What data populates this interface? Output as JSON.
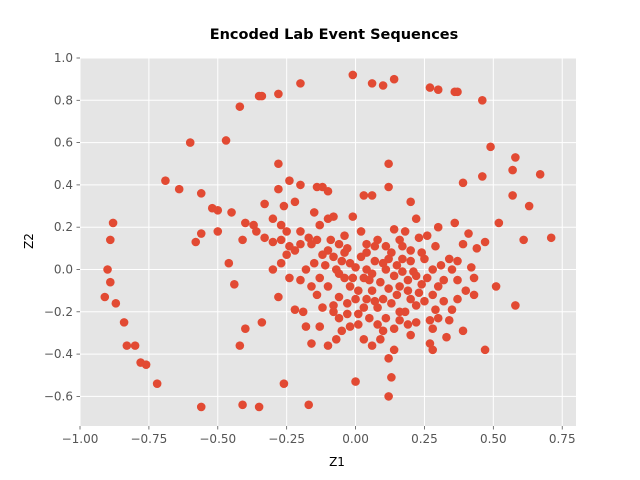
{
  "chart_data": {
    "type": "scatter",
    "title": "Encoded Lab Event Sequences",
    "xlabel": "Z1",
    "ylabel": "Z2",
    "xlim": [
      -1.0,
      0.8
    ],
    "ylim": [
      -0.74,
      1.0
    ],
    "xticks": [
      -1.0,
      -0.75,
      -0.5,
      -0.25,
      0.0,
      0.25,
      0.5,
      0.75
    ],
    "xtick_labels": [
      "−1.00",
      "−0.75",
      "−0.50",
      "−0.25",
      "0.00",
      "0.25",
      "0.50",
      "0.75"
    ],
    "yticks": [
      -0.6,
      -0.4,
      -0.2,
      0.0,
      0.2,
      0.4,
      0.6,
      0.8,
      1.0
    ],
    "ytick_labels": [
      "−0.6",
      "−0.4",
      "−0.2",
      "0.0",
      "0.2",
      "0.4",
      "0.6",
      "0.8",
      "1.0"
    ],
    "grid": true,
    "colors": {
      "point": "#E24A33",
      "background": "#E5E5E5",
      "grid": "#FFFFFF"
    },
    "points": [
      [
        -0.01,
        0.92
      ],
      [
        0.06,
        0.88
      ],
      [
        0.1,
        0.87
      ],
      [
        0.14,
        0.9
      ],
      [
        -0.2,
        0.88
      ],
      [
        -0.28,
        0.83
      ],
      [
        -0.34,
        0.82
      ],
      [
        -0.35,
        0.82
      ],
      [
        -0.42,
        0.77
      ],
      [
        0.27,
        0.86
      ],
      [
        0.3,
        0.85
      ],
      [
        0.37,
        0.84
      ],
      [
        0.36,
        0.84
      ],
      [
        0.46,
        0.8
      ],
      [
        -0.6,
        0.6
      ],
      [
        -0.47,
        0.61
      ],
      [
        0.49,
        0.58
      ],
      [
        0.58,
        0.53
      ],
      [
        0.57,
        0.47
      ],
      [
        0.46,
        0.44
      ],
      [
        0.67,
        0.45
      ],
      [
        -0.69,
        0.42
      ],
      [
        -0.64,
        0.38
      ],
      [
        -0.56,
        0.36
      ],
      [
        0.39,
        0.41
      ],
      [
        0.57,
        0.35
      ],
      [
        0.63,
        0.3
      ],
      [
        0.52,
        0.22
      ],
      [
        0.61,
        0.14
      ],
      [
        0.71,
        0.15
      ],
      [
        -0.88,
        0.22
      ],
      [
        -0.89,
        0.14
      ],
      [
        -0.9,
        0.0
      ],
      [
        -0.89,
        -0.06
      ],
      [
        -0.91,
        -0.13
      ],
      [
        -0.87,
        -0.16
      ],
      [
        -0.84,
        -0.25
      ],
      [
        -0.83,
        -0.36
      ],
      [
        -0.8,
        -0.36
      ],
      [
        -0.78,
        -0.44
      ],
      [
        -0.76,
        -0.45
      ],
      [
        -0.72,
        -0.54
      ],
      [
        -0.56,
        -0.65
      ],
      [
        -0.41,
        -0.64
      ],
      [
        -0.35,
        -0.65
      ],
      [
        -0.17,
        -0.64
      ],
      [
        -0.26,
        -0.54
      ],
      [
        0.0,
        -0.53
      ],
      [
        0.13,
        -0.51
      ],
      [
        0.12,
        -0.6
      ],
      [
        0.51,
        -0.08
      ],
      [
        0.58,
        -0.17
      ],
      [
        0.47,
        -0.38
      ],
      [
        0.39,
        -0.29
      ],
      [
        0.12,
        0.5
      ],
      [
        0.03,
        0.35
      ],
      [
        -0.28,
        0.5
      ],
      [
        -0.24,
        0.42
      ],
      [
        -0.2,
        0.4
      ],
      [
        -0.14,
        0.39
      ],
      [
        -0.12,
        0.39
      ],
      [
        -0.1,
        0.37
      ],
      [
        -0.28,
        0.38
      ],
      [
        -0.26,
        0.3
      ],
      [
        -0.33,
        0.31
      ],
      [
        -0.3,
        0.24
      ],
      [
        -0.27,
        0.21
      ],
      [
        -0.22,
        0.32
      ],
      [
        -0.15,
        0.27
      ],
      [
        -0.13,
        0.21
      ],
      [
        -0.1,
        0.24
      ],
      [
        -0.08,
        0.25
      ],
      [
        0.06,
        0.35
      ],
      [
        0.12,
        0.39
      ],
      [
        0.2,
        0.32
      ],
      [
        0.22,
        0.24
      ],
      [
        0.3,
        0.2
      ],
      [
        0.36,
        0.22
      ],
      [
        0.41,
        0.17
      ],
      [
        0.47,
        0.13
      ],
      [
        0.39,
        0.12
      ],
      [
        0.44,
        0.1
      ],
      [
        -0.5,
        0.28
      ],
      [
        -0.52,
        0.29
      ],
      [
        -0.5,
        0.18
      ],
      [
        -0.45,
        0.27
      ],
      [
        -0.58,
        0.13
      ],
      [
        -0.56,
        0.17
      ],
      [
        -0.4,
        0.22
      ],
      [
        -0.41,
        0.14
      ],
      [
        -0.37,
        0.21
      ],
      [
        -0.36,
        0.18
      ],
      [
        -0.33,
        0.15
      ],
      [
        -0.46,
        0.03
      ],
      [
        -0.44,
        -0.07
      ],
      [
        -0.4,
        -0.28
      ],
      [
        -0.42,
        -0.36
      ],
      [
        -0.34,
        -0.25
      ],
      [
        -0.3,
        0.0
      ],
      [
        -0.27,
        0.03
      ],
      [
        -0.28,
        -0.13
      ],
      [
        -0.22,
        -0.19
      ],
      [
        -0.19,
        -0.2
      ],
      [
        -0.18,
        -0.27
      ],
      [
        -0.16,
        -0.35
      ],
      [
        -0.13,
        -0.27
      ],
      [
        -0.1,
        -0.36
      ],
      [
        -0.07,
        -0.33
      ],
      [
        -0.05,
        -0.29
      ],
      [
        -0.02,
        -0.27
      ],
      [
        -0.03,
        -0.21
      ],
      [
        0.01,
        -0.26
      ],
      [
        0.03,
        -0.33
      ],
      [
        0.06,
        -0.36
      ],
      [
        0.09,
        -0.33
      ],
      [
        0.12,
        -0.42
      ],
      [
        0.14,
        -0.38
      ],
      [
        0.2,
        -0.31
      ],
      [
        0.27,
        -0.35
      ],
      [
        0.22,
        -0.25
      ],
      [
        0.27,
        -0.24
      ],
      [
        0.3,
        -0.23
      ],
      [
        0.34,
        -0.24
      ],
      [
        0.28,
        -0.38
      ],
      [
        0.16,
        -0.2
      ],
      [
        0.19,
        -0.26
      ],
      [
        0.37,
        -0.14
      ],
      [
        0.35,
        -0.19
      ],
      [
        0.43,
        -0.12
      ],
      [
        0.4,
        -0.1
      ],
      [
        0.43,
        -0.04
      ],
      [
        0.42,
        0.01
      ],
      [
        0.35,
        0.0
      ],
      [
        0.37,
        0.04
      ],
      [
        0.31,
        0.02
      ],
      [
        0.28,
        0.0
      ],
      [
        0.25,
        0.05
      ],
      [
        0.24,
        0.08
      ],
      [
        0.29,
        0.11
      ],
      [
        0.16,
        0.14
      ],
      [
        0.11,
        0.11
      ],
      [
        0.13,
        0.08
      ],
      [
        0.17,
        0.05
      ],
      [
        0.12,
        0.05
      ],
      [
        0.11,
        0.0
      ],
      [
        0.2,
        0.04
      ],
      [
        0.21,
        -0.01
      ],
      [
        0.19,
        -0.05
      ],
      [
        0.24,
        -0.07
      ],
      [
        0.23,
        -0.11
      ],
      [
        0.2,
        -0.14
      ],
      [
        0.15,
        -0.12
      ],
      [
        0.1,
        -0.14
      ],
      [
        0.06,
        -0.1
      ],
      [
        0.06,
        -0.02
      ],
      [
        0.03,
        -0.04
      ],
      [
        0.01,
        -0.1
      ],
      [
        0.04,
        -0.14
      ],
      [
        0.03,
        -0.18
      ],
      [
        0.0,
        -0.14
      ],
      [
        -0.02,
        -0.08
      ],
      [
        -0.04,
        -0.04
      ],
      [
        -0.07,
        0.0
      ],
      [
        -0.05,
        0.04
      ],
      [
        -0.02,
        0.03
      ],
      [
        0.02,
        0.06
      ],
      [
        0.04,
        0.08
      ],
      [
        0.07,
        0.11
      ],
      [
        0.04,
        0.12
      ],
      [
        0.02,
        0.18
      ],
      [
        -0.01,
        0.25
      ],
      [
        -0.04,
        0.16
      ],
      [
        -0.06,
        0.12
      ],
      [
        -0.1,
        0.09
      ],
      [
        -0.14,
        0.14
      ],
      [
        -0.17,
        0.15
      ],
      [
        -0.2,
        0.12
      ],
      [
        -0.22,
        0.09
      ],
      [
        -0.25,
        0.07
      ],
      [
        -0.24,
        0.11
      ],
      [
        -0.27,
        0.14
      ],
      [
        -0.3,
        0.13
      ],
      [
        -0.25,
        0.18
      ],
      [
        -0.2,
        0.18
      ],
      [
        -0.16,
        0.12
      ],
      [
        -0.12,
        0.07
      ],
      [
        -0.15,
        0.03
      ],
      [
        -0.18,
        0.0
      ],
      [
        -0.2,
        -0.05
      ],
      [
        -0.24,
        -0.04
      ],
      [
        -0.16,
        -0.08
      ],
      [
        -0.13,
        -0.04
      ],
      [
        -0.1,
        -0.08
      ],
      [
        -0.14,
        -0.12
      ],
      [
        -0.12,
        -0.18
      ],
      [
        -0.08,
        -0.17
      ],
      [
        -0.06,
        -0.13
      ],
      [
        -0.08,
        -0.2
      ],
      [
        -0.06,
        -0.23
      ],
      [
        -0.03,
        -0.16
      ],
      [
        0.08,
        -0.18
      ],
      [
        0.11,
        -0.23
      ],
      [
        0.08,
        -0.26
      ],
      [
        0.05,
        -0.23
      ],
      [
        0.14,
        -0.28
      ],
      [
        0.18,
        -0.2
      ],
      [
        0.22,
        -0.17
      ],
      [
        0.25,
        -0.15
      ],
      [
        0.28,
        -0.12
      ],
      [
        0.3,
        -0.08
      ],
      [
        0.26,
        -0.04
      ],
      [
        0.29,
        -0.19
      ],
      [
        0.32,
        -0.15
      ],
      [
        0.28,
        -0.28
      ],
      [
        0.33,
        -0.32
      ],
      [
        0.13,
        -0.16
      ],
      [
        0.16,
        -0.08
      ],
      [
        0.09,
        -0.06
      ],
      [
        0.14,
        -0.03
      ],
      [
        0.1,
        0.03
      ],
      [
        0.15,
        0.02
      ],
      [
        0.17,
        -0.01
      ],
      [
        0.07,
        0.04
      ],
      [
        0.0,
        0.01
      ],
      [
        -0.01,
        -0.04
      ],
      [
        0.04,
        0.0
      ],
      [
        -0.04,
        0.08
      ],
      [
        -0.08,
        0.06
      ],
      [
        -0.11,
        0.02
      ],
      [
        0.2,
        0.09
      ],
      [
        0.23,
        0.15
      ],
      [
        0.34,
        0.05
      ],
      [
        0.37,
        -0.05
      ],
      [
        0.32,
        -0.05
      ],
      [
        0.19,
        -0.1
      ],
      [
        0.12,
        -0.09
      ],
      [
        0.07,
        -0.15
      ],
      [
        0.01,
        -0.21
      ],
      [
        0.05,
        -0.05
      ],
      [
        0.22,
        -0.03
      ],
      [
        0.18,
        0.18
      ],
      [
        0.26,
        0.16
      ],
      [
        0.14,
        0.19
      ],
      [
        0.08,
        0.14
      ],
      [
        -0.03,
        0.1
      ],
      [
        -0.09,
        0.14
      ],
      [
        -0.06,
        -0.02
      ],
      [
        0.17,
        0.11
      ],
      [
        0.1,
        -0.29
      ],
      [
        0.16,
        -0.24
      ]
    ]
  }
}
